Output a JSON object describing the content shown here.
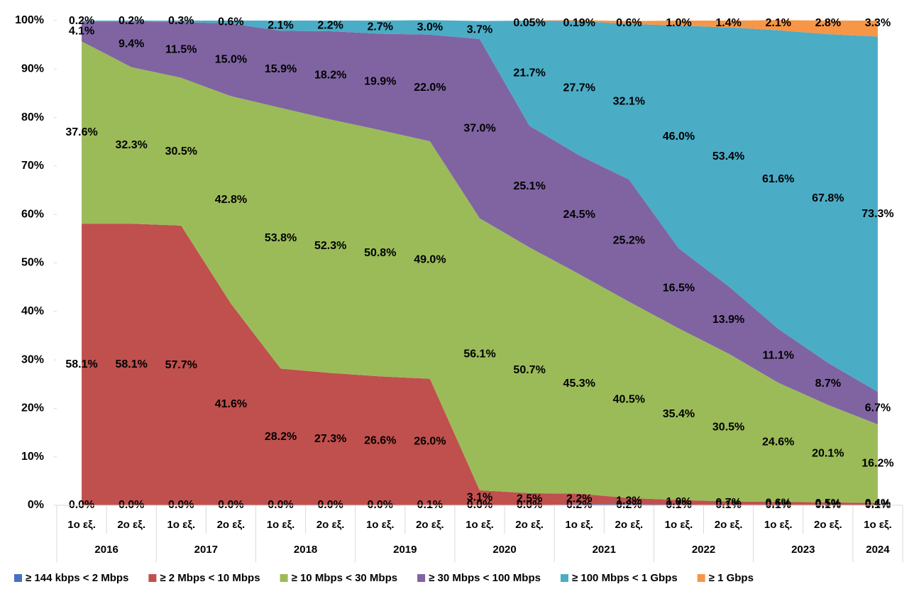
{
  "chart_data": {
    "type": "stacked_area",
    "groups": [
      {
        "year": "2016",
        "categories": [
          "1ο εξ.",
          "2ο εξ."
        ]
      },
      {
        "year": "2017",
        "categories": [
          "1ο εξ.",
          "2ο εξ."
        ]
      },
      {
        "year": "2018",
        "categories": [
          "1ο εξ.",
          "2ο εξ."
        ]
      },
      {
        "year": "2019",
        "categories": [
          "1ο εξ.",
          "2ο εξ."
        ]
      },
      {
        "year": "2020",
        "categories": [
          "1ο εξ.",
          "2ο εξ."
        ]
      },
      {
        "year": "2021",
        "categories": [
          "1ο εξ.",
          "2ο εξ."
        ]
      },
      {
        "year": "2022",
        "categories": [
          "1ο εξ.",
          "2ο εξ."
        ]
      },
      {
        "year": "2023",
        "categories": [
          "1ο εξ.",
          "2ο εξ."
        ]
      },
      {
        "year": "2024",
        "categories": [
          "1ο εξ."
        ]
      }
    ],
    "series": [
      {
        "name": "≥ 144 kbps < 2 Mbps",
        "color": "#4472c4",
        "values": [
          0.0,
          0.0,
          0.0,
          0.0,
          0.0,
          0.0,
          0.0,
          0.1,
          0.0,
          0.0,
          0.2,
          0.2,
          0.1,
          0.1,
          0.1,
          0.1,
          0.1
        ],
        "value_labels": [
          "0.0%",
          "0.0%",
          "0.0%",
          "0.0%",
          "0.0%",
          "0.0%",
          "0.0%",
          "0.1%",
          "0.0%",
          "0.0%",
          "0.2%",
          "0.2%",
          "0.1%",
          "0.1%",
          "0.1%",
          "0.1%",
          "0.1%"
        ]
      },
      {
        "name": "≥ 2 Mbps < 10 Mbps",
        "color": "#c0504d",
        "values": [
          58.1,
          58.1,
          57.7,
          41.6,
          28.2,
          27.3,
          26.6,
          26.0,
          3.1,
          2.5,
          2.2,
          1.3,
          1.0,
          0.7,
          0.6,
          0.5,
          0.4
        ],
        "value_labels": [
          "58.1%",
          "58.1%",
          "57.7%",
          "41.6%",
          "28.2%",
          "27.3%",
          "26.6%",
          "26.0%",
          "3.1%",
          "2.5%",
          "2.2%",
          "1.3%",
          "1.0%",
          "0.7%",
          "0.6%",
          "0.5%",
          "0.4%"
        ]
      },
      {
        "name": "≥  10 Mbps < 30 Mbps",
        "color": "#9bbb59",
        "values": [
          37.6,
          32.3,
          30.5,
          42.8,
          53.8,
          52.3,
          50.8,
          49.0,
          56.1,
          50.7,
          45.3,
          40.5,
          35.4,
          30.5,
          24.6,
          20.1,
          16.2
        ],
        "value_labels": [
          "37.6%",
          "32.3%",
          "30.5%",
          "42.8%",
          "53.8%",
          "52.3%",
          "50.8%",
          "49.0%",
          "56.1%",
          "50.7%",
          "45.3%",
          "40.5%",
          "35.4%",
          "30.5%",
          "24.6%",
          "20.1%",
          "16.2%"
        ]
      },
      {
        "name": "≥  30 Mbps < 100 Mbps",
        "color": "#8064a2",
        "values": [
          4.1,
          9.4,
          11.5,
          15.0,
          15.9,
          18.2,
          19.9,
          22.0,
          37.0,
          25.1,
          24.5,
          25.2,
          16.5,
          13.9,
          11.1,
          8.7,
          6.7
        ],
        "value_labels": [
          "4.1%",
          "9.4%",
          "11.5%",
          "15.0%",
          "15.9%",
          "18.2%",
          "19.9%",
          "22.0%",
          "37.0%",
          "25.1%",
          "24.5%",
          "25.2%",
          "16.5%",
          "13.9%",
          "11.1%",
          "8.7%",
          "6.7%"
        ]
      },
      {
        "name": "≥ 100 Mbps < 1 Gbps",
        "color": "#4bacc6",
        "values": [
          0.2,
          0.2,
          0.3,
          0.6,
          2.1,
          2.2,
          2.7,
          3.0,
          3.7,
          21.7,
          27.7,
          32.1,
          46.0,
          53.4,
          61.6,
          67.8,
          73.3
        ],
        "value_labels": [
          "0.2%",
          "0.2%",
          "0.3%",
          "0.6%",
          "2.1%",
          "2.2%",
          "2.7%",
          "3.0%",
          "3.7%",
          "21.7%",
          "27.7%",
          "32.1%",
          "46.0%",
          "53.4%",
          "61.6%",
          "67.8%",
          "73.3%"
        ]
      },
      {
        "name": "≥ 1 Gbps",
        "color": "#f79646",
        "values": [
          null,
          null,
          null,
          null,
          null,
          null,
          null,
          null,
          null,
          0.05,
          0.19,
          0.6,
          1.0,
          1.4,
          2.1,
          2.8,
          3.3
        ],
        "value_labels": [
          null,
          null,
          null,
          null,
          null,
          null,
          null,
          null,
          null,
          "0.05%",
          "0.19%",
          "0.6%",
          "1.0%",
          "1.4%",
          "2.1%",
          "2.8%",
          "3.3%"
        ]
      }
    ],
    "ylim": [
      0,
      100
    ],
    "yticks": [
      {
        "value": 0,
        "label": "0%"
      },
      {
        "value": 10,
        "label": "10%"
      },
      {
        "value": 20,
        "label": "20%"
      },
      {
        "value": 30,
        "label": "30%"
      },
      {
        "value": 40,
        "label": "40%"
      },
      {
        "value": 50,
        "label": "50%"
      },
      {
        "value": 60,
        "label": "60%"
      },
      {
        "value": 70,
        "label": "70%"
      },
      {
        "value": 80,
        "label": "80%"
      },
      {
        "value": 90,
        "label": "90%"
      },
      {
        "value": 100,
        "label": "100%"
      }
    ],
    "legend": "bottom"
  }
}
